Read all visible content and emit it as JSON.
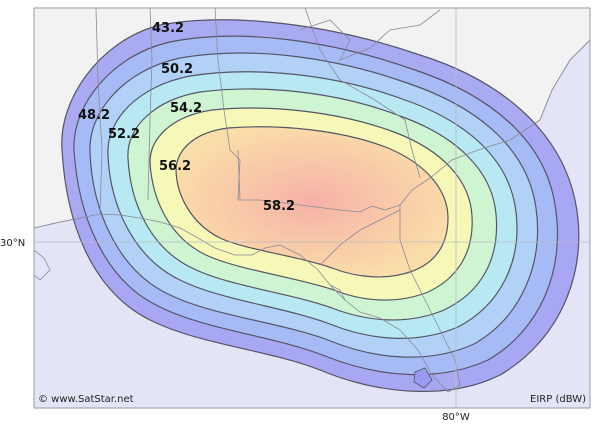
{
  "map": {
    "contour_labels": [
      {
        "id": "43",
        "text": "43.2"
      },
      {
        "id": "48",
        "text": "48.2"
      },
      {
        "id": "50",
        "text": "50.2"
      },
      {
        "id": "52",
        "text": "52.2"
      },
      {
        "id": "54",
        "text": "54.2"
      },
      {
        "id": "56",
        "text": "56.2"
      },
      {
        "id": "58",
        "text": "58.2"
      }
    ],
    "grid_labels": {
      "latitude": "30°N",
      "longitude": "80°W"
    },
    "credit": "© www.SatStar.net",
    "legend_unit": "EIRP (dBW)",
    "colors": {
      "sea": "#e4e4f7",
      "land": "#f2f2f2",
      "outer": "#9a9af2",
      "blue": "#a6bef6",
      "light_blue": "#aee8f7",
      "cyan_green": "#c4f3d6",
      "yellow": "#f8f8b6",
      "peach": "#fbdca8",
      "core": "#f7b8aa",
      "contour_line": "#555566",
      "grid_line": "#b8b8c8"
    }
  }
}
